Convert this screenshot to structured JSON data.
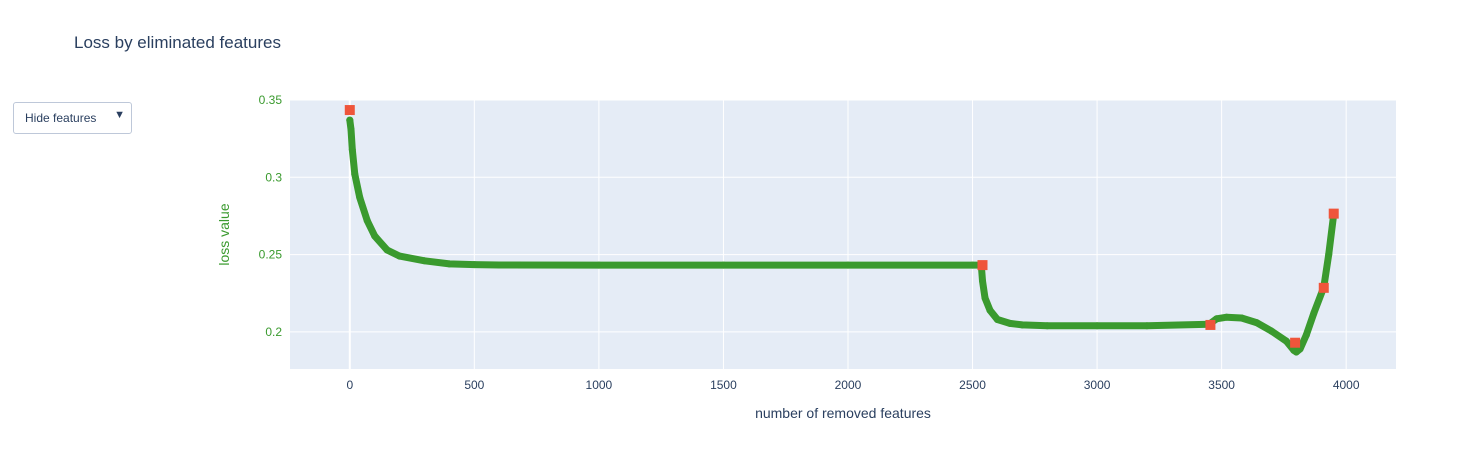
{
  "title": "Loss by eliminated features",
  "dropdown": {
    "label": "Hide features",
    "icon": "triangle-down-icon"
  },
  "colors": {
    "line": "#3a9a2e",
    "marker": "#ef553b",
    "plot_bg": "#e5ecf6",
    "yaxis": "#3a9a2e",
    "text": "#2a3f5f"
  },
  "chart_data": {
    "type": "line",
    "title": "Loss by eliminated features",
    "xlabel": "number of removed features",
    "ylabel": "loss value",
    "xlim": [
      -240,
      4200
    ],
    "ylim": [
      0.176,
      0.35
    ],
    "x_ticks": [
      0,
      500,
      1000,
      1500,
      2000,
      2500,
      3000,
      3500,
      4000
    ],
    "y_ticks": [
      0.2,
      0.25,
      0.3,
      0.35
    ],
    "y_tick_labels": [
      "0.2",
      "0.25",
      "0.3",
      "0.35"
    ],
    "grid": true,
    "series": [
      {
        "mode": "lines+markers",
        "x": [
          0,
          5,
          10,
          20,
          40,
          70,
          100,
          150,
          200,
          300,
          400,
          500,
          600,
          1000,
          1500,
          2000,
          2500,
          2535,
          2540,
          2550,
          2570,
          2600,
          2650,
          2700,
          2800,
          3000,
          3200,
          3450,
          3480,
          3520,
          3580,
          3640,
          3700,
          3760,
          3790,
          3800,
          3815,
          3840,
          3870,
          3910,
          3930,
          3950
        ],
        "y": [
          0.337,
          0.331,
          0.318,
          0.302,
          0.287,
          0.272,
          0.262,
          0.253,
          0.249,
          0.246,
          0.244,
          0.2435,
          0.2433,
          0.2432,
          0.2432,
          0.2432,
          0.2432,
          0.2432,
          0.233,
          0.222,
          0.214,
          0.208,
          0.2055,
          0.2045,
          0.204,
          0.204,
          0.204,
          0.205,
          0.2085,
          0.2095,
          0.209,
          0.206,
          0.2005,
          0.194,
          0.188,
          0.187,
          0.189,
          0.198,
          0.212,
          0.229,
          0.25,
          0.276
        ]
      },
      {
        "mode": "markers",
        "x": [
          0,
          2540,
          3455,
          3795,
          3910,
          3950
        ],
        "y": [
          0.3435,
          0.2432,
          0.2045,
          0.193,
          0.2285,
          0.2765
        ]
      }
    ]
  }
}
